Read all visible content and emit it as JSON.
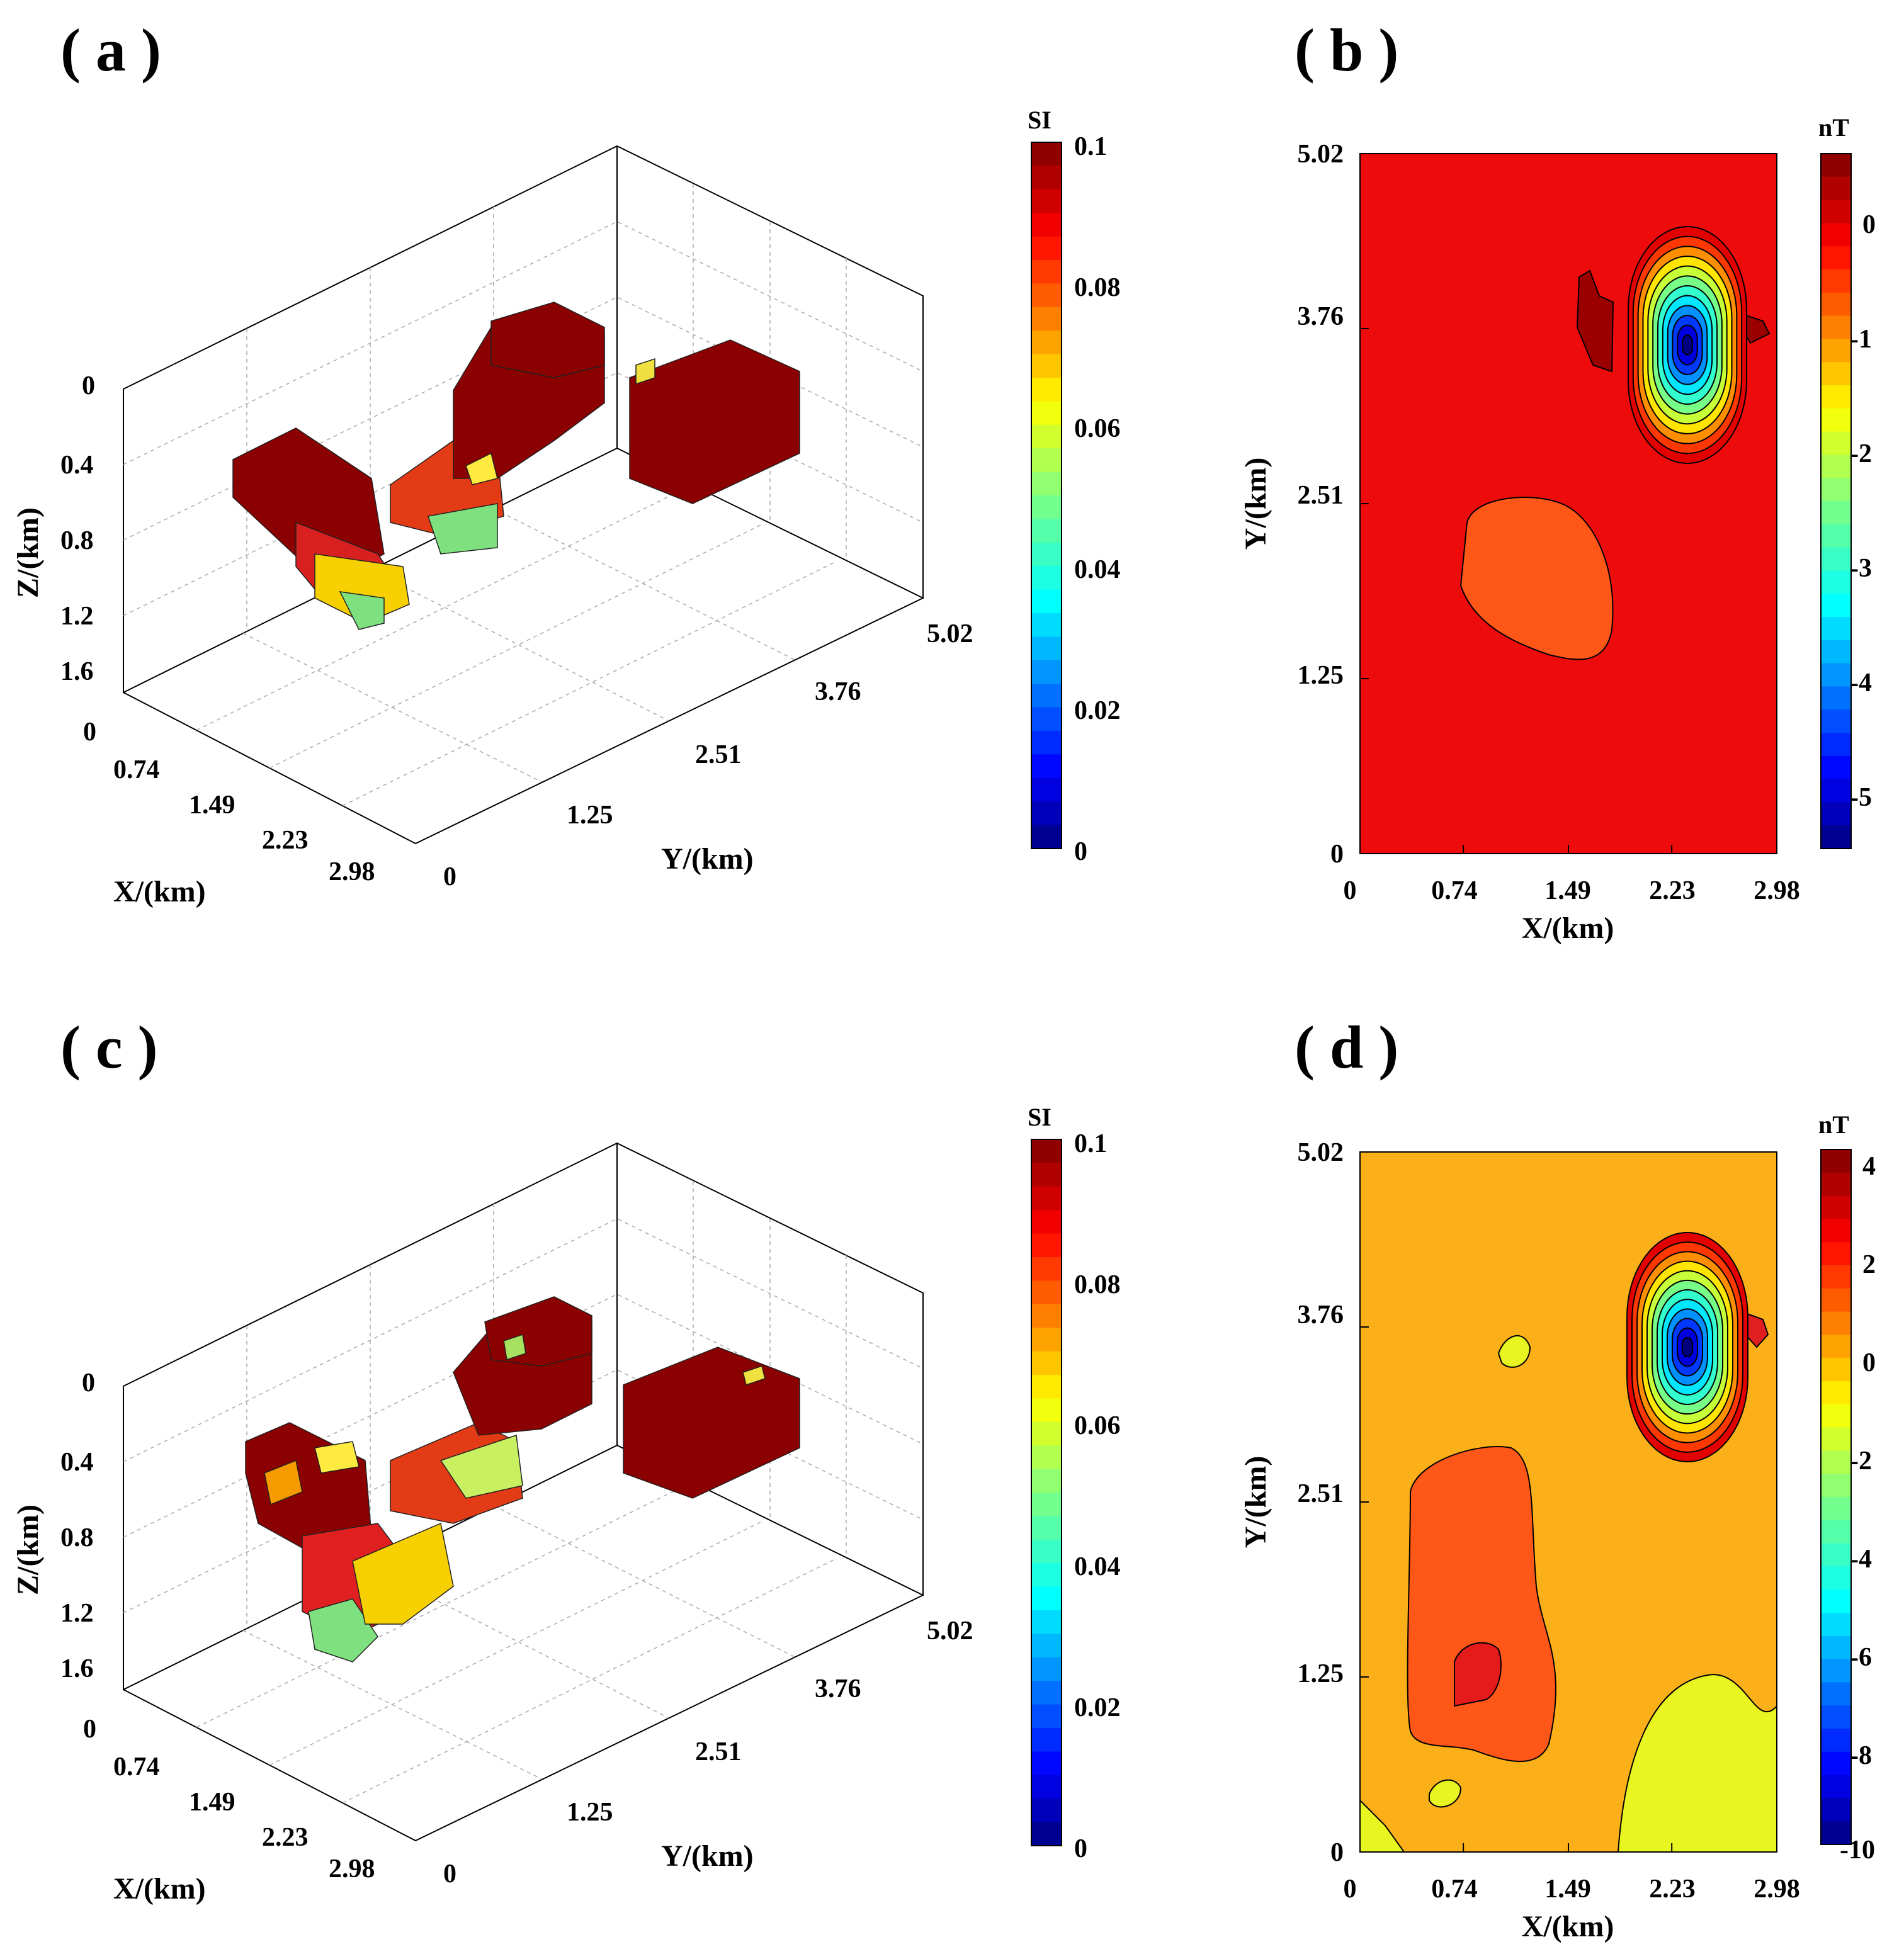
{
  "chart_data": [
    {
      "panel": "( a )",
      "type": "3d-voxel",
      "xlabel": "X/(km)",
      "ylabel": "Y/(km)",
      "zlabel": "Z/(km)",
      "x_ticks": [
        "0",
        "0.74",
        "1.49",
        "2.23",
        "2.98"
      ],
      "y_ticks": [
        "0",
        "1.25",
        "2.51",
        "3.76",
        "5.02"
      ],
      "z_ticks": [
        "0",
        "0.4",
        "0.8",
        "1.2",
        "1.6"
      ],
      "colorbar": {
        "title": "SI",
        "min": 0,
        "max": 0.1,
        "ticks": [
          "0.1",
          "0.08",
          "0.06",
          "0.04",
          "0.02",
          "0"
        ]
      }
    },
    {
      "panel": "( b )",
      "type": "contour",
      "xlabel": "X/(km)",
      "ylabel": "Y/(km)",
      "x_ticks": [
        "0",
        "0.74",
        "1.49",
        "2.23",
        "2.98"
      ],
      "y_ticks": [
        "0",
        "1.25",
        "2.51",
        "3.76",
        "5.02"
      ],
      "xlim": [
        0,
        2.98
      ],
      "ylim": [
        0,
        5.02
      ],
      "background_value": 0,
      "anomalies": [
        {
          "kind": "negative",
          "center": [
            2.27,
            3.5
          ],
          "min_value": -5.4
        },
        {
          "kind": "negative",
          "center": [
            1.05,
            1.9
          ],
          "value": -0.5
        },
        {
          "kind": "positive",
          "center": [
            1.65,
            3.7
          ],
          "value": 0.5
        },
        {
          "kind": "positive",
          "center": [
            2.85,
            3.7
          ],
          "value": 0.5
        }
      ],
      "colorbar": {
        "title": "nT",
        "min": -5.5,
        "max": 0.6,
        "ticks": [
          "0",
          "-1",
          "-2",
          "-3",
          "-4",
          "-5"
        ]
      }
    },
    {
      "panel": "( c )",
      "type": "3d-voxel",
      "xlabel": "X/(km)",
      "ylabel": "Y/(km)",
      "zlabel": "Z/(km)",
      "x_ticks": [
        "0",
        "0.74",
        "1.49",
        "2.23",
        "2.98"
      ],
      "y_ticks": [
        "0",
        "1.25",
        "2.51",
        "3.76",
        "5.02"
      ],
      "z_ticks": [
        "0",
        "0.4",
        "0.8",
        "1.2",
        "1.6"
      ],
      "colorbar": {
        "title": "SI",
        "min": 0,
        "max": 0.1,
        "ticks": [
          "0.1",
          "0.08",
          "0.06",
          "0.04",
          "0.02",
          "0"
        ]
      }
    },
    {
      "panel": "( d )",
      "type": "contour",
      "xlabel": "X/(km)",
      "ylabel": "Y/(km)",
      "x_ticks": [
        "0",
        "0.74",
        "1.49",
        "2.23",
        "2.98"
      ],
      "y_ticks": [
        "0",
        "1.25",
        "2.51",
        "3.76",
        "5.02"
      ],
      "xlim": [
        0,
        2.98
      ],
      "ylim": [
        0,
        5.02
      ],
      "background_value": 0,
      "anomalies": [
        {
          "kind": "negative",
          "center": [
            2.25,
            3.5
          ],
          "min_value": -10
        },
        {
          "kind": "positive",
          "center": [
            0.9,
            1.6
          ],
          "value": 1
        },
        {
          "kind": "positive",
          "center": [
            0.85,
            1.15
          ],
          "value": 2
        },
        {
          "kind": "negative",
          "center": [
            2.25,
            0.5
          ],
          "value": -0.5
        }
      ],
      "colorbar": {
        "title": "nT",
        "min": -10.5,
        "max": 4.5,
        "ticks": [
          "4",
          "2",
          "0",
          "-2",
          "-4",
          "-6",
          "-8",
          "-10"
        ]
      }
    }
  ]
}
